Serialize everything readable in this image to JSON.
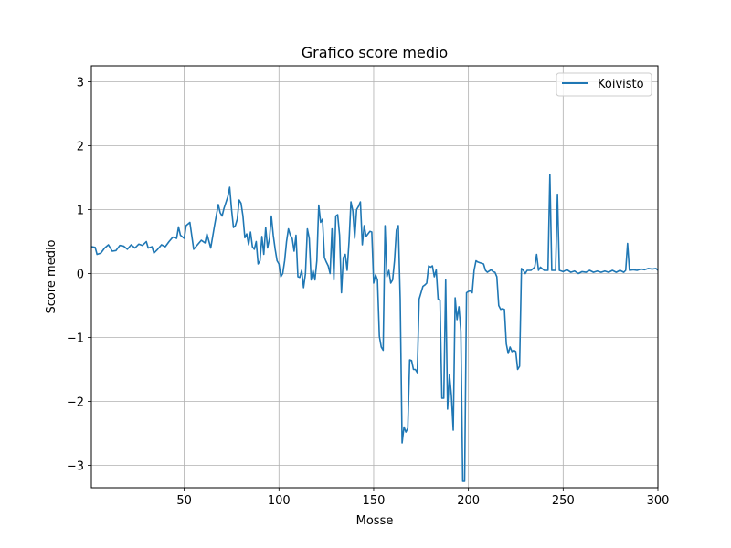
{
  "chart_data": {
    "type": "line",
    "title": "Grafico score medio",
    "xlabel": "Mosse",
    "ylabel": "Score medio",
    "xlim": [
      1,
      300
    ],
    "ylim": [
      -3.35,
      3.25
    ],
    "xticks": [
      50,
      100,
      150,
      200,
      250,
      300
    ],
    "yticks": [
      -3,
      -2,
      -1,
      0,
      1,
      2,
      3
    ],
    "xtick_labels": [
      "50",
      "100",
      "150",
      "200",
      "250",
      "300"
    ],
    "ytick_labels": [
      "−3",
      "−2",
      "−1",
      "0",
      "1",
      "2",
      "3"
    ],
    "grid": true,
    "legend_position": "top-right",
    "series": [
      {
        "name": "Koivisto",
        "color": "#1f77b4",
        "points": [
          [
            1,
            0.42
          ],
          [
            3,
            0.41
          ],
          [
            4,
            0.3
          ],
          [
            6,
            0.32
          ],
          [
            8,
            0.4
          ],
          [
            10,
            0.45
          ],
          [
            12,
            0.35
          ],
          [
            14,
            0.36
          ],
          [
            16,
            0.44
          ],
          [
            18,
            0.43
          ],
          [
            20,
            0.38
          ],
          [
            22,
            0.45
          ],
          [
            24,
            0.4
          ],
          [
            26,
            0.46
          ],
          [
            28,
            0.44
          ],
          [
            30,
            0.5
          ],
          [
            31,
            0.4
          ],
          [
            33,
            0.42
          ],
          [
            34,
            0.32
          ],
          [
            36,
            0.38
          ],
          [
            38,
            0.45
          ],
          [
            40,
            0.42
          ],
          [
            42,
            0.5
          ],
          [
            44,
            0.57
          ],
          [
            46,
            0.55
          ],
          [
            47,
            0.73
          ],
          [
            48,
            0.6
          ],
          [
            50,
            0.55
          ],
          [
            51,
            0.75
          ],
          [
            53,
            0.8
          ],
          [
            55,
            0.38
          ],
          [
            57,
            0.45
          ],
          [
            59,
            0.52
          ],
          [
            61,
            0.48
          ],
          [
            62,
            0.62
          ],
          [
            64,
            0.4
          ],
          [
            66,
            0.75
          ],
          [
            68,
            1.08
          ],
          [
            69,
            0.95
          ],
          [
            70,
            0.9
          ],
          [
            71,
            1.02
          ],
          [
            73,
            1.2
          ],
          [
            74,
            1.35
          ],
          [
            75,
            1.0
          ],
          [
            76,
            0.72
          ],
          [
            77,
            0.75
          ],
          [
            78,
            0.85
          ],
          [
            79,
            1.15
          ],
          [
            80,
            1.1
          ],
          [
            81,
            0.9
          ],
          [
            82,
            0.56
          ],
          [
            83,
            0.62
          ],
          [
            84,
            0.45
          ],
          [
            85,
            0.65
          ],
          [
            86,
            0.42
          ],
          [
            87,
            0.38
          ],
          [
            88,
            0.5
          ],
          [
            89,
            0.15
          ],
          [
            90,
            0.2
          ],
          [
            91,
            0.58
          ],
          [
            92,
            0.3
          ],
          [
            93,
            0.72
          ],
          [
            94,
            0.4
          ],
          [
            95,
            0.55
          ],
          [
            96,
            0.9
          ],
          [
            97,
            0.6
          ],
          [
            98,
            0.38
          ],
          [
            99,
            0.2
          ],
          [
            100,
            0.15
          ],
          [
            101,
            -0.05
          ],
          [
            102,
            0.0
          ],
          [
            103,
            0.2
          ],
          [
            104,
            0.5
          ],
          [
            105,
            0.7
          ],
          [
            106,
            0.6
          ],
          [
            107,
            0.55
          ],
          [
            108,
            0.35
          ],
          [
            109,
            0.6
          ],
          [
            110,
            -0.05
          ],
          [
            111,
            -0.06
          ],
          [
            112,
            0.05
          ],
          [
            113,
            -0.22
          ],
          [
            114,
            0.0
          ],
          [
            115,
            0.7
          ],
          [
            116,
            0.55
          ],
          [
            117,
            -0.1
          ],
          [
            118,
            0.05
          ],
          [
            119,
            -0.1
          ],
          [
            120,
            0.2
          ],
          [
            121,
            1.07
          ],
          [
            122,
            0.8
          ],
          [
            123,
            0.85
          ],
          [
            124,
            0.25
          ],
          [
            125,
            0.18
          ],
          [
            126,
            0.12
          ],
          [
            127,
            0.0
          ],
          [
            128,
            0.7
          ],
          [
            129,
            -0.1
          ],
          [
            130,
            0.9
          ],
          [
            131,
            0.92
          ],
          [
            132,
            0.6
          ],
          [
            133,
            -0.3
          ],
          [
            134,
            0.25
          ],
          [
            135,
            0.3
          ],
          [
            136,
            0.05
          ],
          [
            137,
            0.5
          ],
          [
            138,
            1.12
          ],
          [
            139,
            0.98
          ],
          [
            140,
            0.55
          ],
          [
            141,
            1.0
          ],
          [
            142,
            1.05
          ],
          [
            143,
            1.12
          ],
          [
            144,
            0.45
          ],
          [
            145,
            0.75
          ],
          [
            146,
            0.58
          ],
          [
            147,
            0.62
          ],
          [
            148,
            0.66
          ],
          [
            149,
            0.65
          ],
          [
            150,
            -0.15
          ],
          [
            151,
            -0.02
          ],
          [
            152,
            -0.1
          ],
          [
            153,
            -0.98
          ],
          [
            154,
            -1.15
          ],
          [
            155,
            -1.2
          ],
          [
            156,
            0.75
          ],
          [
            157,
            -0.05
          ],
          [
            158,
            0.05
          ],
          [
            159,
            -0.15
          ],
          [
            160,
            -0.1
          ],
          [
            161,
            0.2
          ],
          [
            162,
            0.68
          ],
          [
            163,
            0.75
          ],
          [
            164,
            -0.4
          ],
          [
            165,
            -2.65
          ],
          [
            166,
            -2.4
          ],
          [
            167,
            -2.48
          ],
          [
            168,
            -2.42
          ],
          [
            169,
            -1.35
          ],
          [
            170,
            -1.36
          ],
          [
            171,
            -1.5
          ],
          [
            172,
            -1.5
          ],
          [
            173,
            -1.55
          ],
          [
            174,
            -0.4
          ],
          [
            175,
            -0.3
          ],
          [
            176,
            -0.2
          ],
          [
            177,
            -0.18
          ],
          [
            178,
            -0.15
          ],
          [
            179,
            0.12
          ],
          [
            180,
            0.1
          ],
          [
            181,
            0.12
          ],
          [
            182,
            -0.05
          ],
          [
            183,
            0.06
          ],
          [
            184,
            -0.4
          ],
          [
            185,
            -0.42
          ],
          [
            186,
            -1.95
          ],
          [
            187,
            -1.95
          ],
          [
            188,
            -0.1
          ],
          [
            189,
            -2.12
          ],
          [
            190,
            -1.58
          ],
          [
            191,
            -1.9
          ],
          [
            192,
            -2.45
          ],
          [
            193,
            -0.38
          ],
          [
            194,
            -0.72
          ],
          [
            195,
            -0.52
          ],
          [
            196,
            -0.9
          ],
          [
            197,
            -3.25
          ],
          [
            198,
            -3.25
          ],
          [
            199,
            -0.3
          ],
          [
            200,
            -0.28
          ],
          [
            201,
            -0.27
          ],
          [
            202,
            -0.3
          ],
          [
            203,
            0.05
          ],
          [
            204,
            0.2
          ],
          [
            205,
            0.18
          ],
          [
            206,
            0.17
          ],
          [
            207,
            0.16
          ],
          [
            208,
            0.15
          ],
          [
            209,
            0.05
          ],
          [
            210,
            0.02
          ],
          [
            211,
            0.04
          ],
          [
            212,
            0.06
          ],
          [
            213,
            0.03
          ],
          [
            214,
            0.02
          ],
          [
            215,
            -0.05
          ],
          [
            216,
            -0.5
          ],
          [
            217,
            -0.56
          ],
          [
            218,
            -0.55
          ],
          [
            219,
            -0.56
          ],
          [
            220,
            -1.1
          ],
          [
            221,
            -1.25
          ],
          [
            222,
            -1.15
          ],
          [
            223,
            -1.22
          ],
          [
            224,
            -1.2
          ],
          [
            225,
            -1.22
          ],
          [
            226,
            -1.5
          ],
          [
            227,
            -1.45
          ],
          [
            228,
            0.08
          ],
          [
            229,
            0.05
          ],
          [
            230,
            0.0
          ],
          [
            231,
            0.05
          ],
          [
            233,
            0.05
          ],
          [
            235,
            0.1
          ],
          [
            236,
            0.3
          ],
          [
            237,
            0.05
          ],
          [
            238,
            0.1
          ],
          [
            240,
            0.05
          ],
          [
            242,
            0.05
          ],
          [
            243,
            1.55
          ],
          [
            244,
            0.05
          ],
          [
            246,
            0.05
          ],
          [
            247,
            1.24
          ],
          [
            248,
            0.05
          ],
          [
            250,
            0.03
          ],
          [
            252,
            0.06
          ],
          [
            254,
            0.02
          ],
          [
            256,
            0.04
          ],
          [
            258,
            0.0
          ],
          [
            260,
            0.03
          ],
          [
            262,
            0.02
          ],
          [
            264,
            0.05
          ],
          [
            266,
            0.02
          ],
          [
            268,
            0.04
          ],
          [
            270,
            0.02
          ],
          [
            272,
            0.04
          ],
          [
            274,
            0.02
          ],
          [
            276,
            0.05
          ],
          [
            278,
            0.02
          ],
          [
            280,
            0.05
          ],
          [
            282,
            0.02
          ],
          [
            283,
            0.05
          ],
          [
            284,
            0.47
          ],
          [
            285,
            0.05
          ],
          [
            287,
            0.06
          ],
          [
            289,
            0.05
          ],
          [
            291,
            0.07
          ],
          [
            293,
            0.06
          ],
          [
            295,
            0.08
          ],
          [
            297,
            0.07
          ],
          [
            299,
            0.08
          ],
          [
            300,
            0.05
          ]
        ]
      }
    ]
  }
}
